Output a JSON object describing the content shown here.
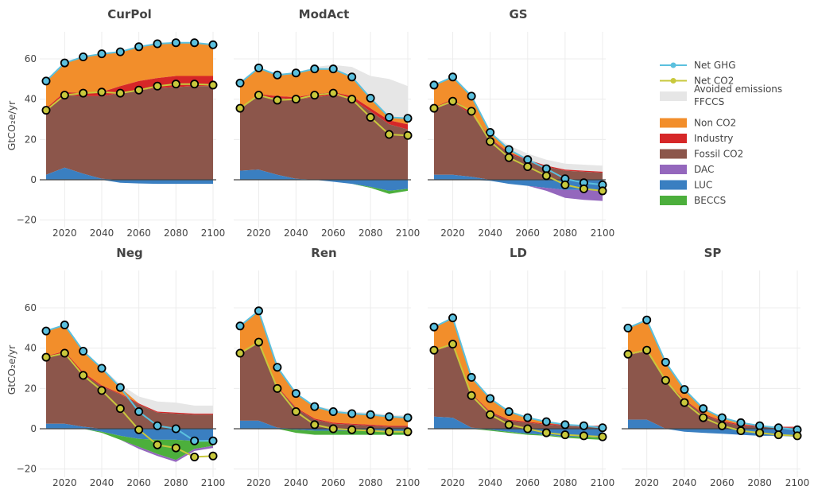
{
  "chart_data": {
    "type": "area",
    "ylabel": "GtCO₂e/yr",
    "x_ticks": [
      2020,
      2040,
      2060,
      2080,
      2100
    ],
    "y_ticks": [
      -20,
      0,
      20,
      40,
      60
    ],
    "ylim": [
      -20,
      75
    ],
    "x": [
      2010,
      2020,
      2030,
      2040,
      2050,
      2060,
      2070,
      2080,
      2090,
      2100
    ],
    "legend": {
      "placement": "right",
      "items": [
        {
          "key": "net_ghg",
          "label": "Net GHG",
          "kind": "line",
          "color": "#5bc0de"
        },
        {
          "key": "net_co2",
          "label": "Net CO2",
          "kind": "line",
          "color": "#c8c83c"
        },
        {
          "key": "avoided",
          "label": "Avoided emissions",
          "label2": "FFCCS",
          "kind": "area",
          "color": "#e6e6e6"
        },
        {
          "key": "nonco2",
          "label": "Non CO2",
          "kind": "area",
          "color": "#f28e2b"
        },
        {
          "key": "industry",
          "label": "Industry",
          "kind": "area",
          "color": "#d62728"
        },
        {
          "key": "fossil",
          "label": "Fossil CO2",
          "kind": "area",
          "color": "#8c564b"
        },
        {
          "key": "dac",
          "label": "DAC",
          "kind": "area",
          "color": "#9467bd"
        },
        {
          "key": "luc",
          "label": "LUC",
          "kind": "area",
          "color": "#3a7fc1"
        },
        {
          "key": "beccs",
          "label": "BECCS",
          "kind": "area",
          "color": "#4caf3c"
        }
      ]
    },
    "panels": [
      {
        "title": "CurPol",
        "net_ghg": [
          49,
          58,
          61,
          62.5,
          63.5,
          66,
          67.5,
          68,
          68,
          67
        ],
        "net_co2": [
          34.5,
          42,
          43,
          43.5,
          43,
          44.5,
          46.5,
          47.5,
          47.5,
          47
        ],
        "fossil": [
          32,
          36,
          38.5,
          41,
          43,
          44.5,
          45.5,
          46,
          46.5,
          46.5
        ],
        "industry": [
          1,
          1.5,
          1.5,
          2,
          3.5,
          4.5,
          5,
          5.5,
          5,
          5
        ],
        "luc": [
          2.5,
          6,
          3,
          0.5,
          -1.5,
          -1.8,
          -2,
          -2,
          -2,
          -2
        ],
        "beccs": [
          0,
          0,
          0,
          0,
          0,
          0,
          0,
          0,
          0,
          0
        ],
        "dac": [
          0,
          0,
          0,
          0,
          0,
          0,
          0,
          0,
          0,
          0
        ],
        "avoided": [
          0,
          0,
          0,
          0,
          0,
          0,
          0,
          0,
          0,
          0
        ]
      },
      {
        "title": "ModAct",
        "net_ghg": [
          48,
          55.5,
          52,
          53,
          55,
          55,
          51,
          40.5,
          31,
          30.5
        ],
        "net_co2": [
          35.5,
          42,
          39.5,
          40,
          42,
          43,
          40,
          31,
          22.5,
          22
        ],
        "fossil": [
          30.5,
          36.5,
          38,
          39.5,
          41,
          42,
          40,
          34,
          27.5,
          25
        ],
        "industry": [
          0.5,
          1,
          1,
          1,
          1.5,
          1.5,
          1.5,
          1.5,
          2,
          2.5
        ],
        "luc": [
          4.5,
          5,
          2.5,
          0.5,
          0,
          -1,
          -2,
          -3.5,
          -5.5,
          -4.5
        ],
        "beccs": [
          0,
          0,
          0,
          0,
          0,
          0,
          0,
          -0.5,
          -1.5,
          -1
        ],
        "dac": [
          0,
          0,
          0,
          0,
          0,
          0,
          0,
          0,
          0,
          0
        ],
        "avoided": [
          0,
          0,
          0,
          0,
          1,
          2,
          5,
          11,
          19,
          16
        ]
      },
      {
        "title": "GS",
        "net_ghg": [
          47,
          51,
          41.5,
          23.5,
          15,
          10,
          5.5,
          0.5,
          -1.5,
          -2.5
        ],
        "net_co2": [
          35.5,
          39,
          34,
          19,
          11,
          6.5,
          2,
          -2.5,
          -4.5,
          -5.5
        ],
        "fossil": [
          32.5,
          36,
          31,
          20,
          13,
          9.5,
          6.5,
          4.5,
          4,
          3.5
        ],
        "industry": [
          1,
          1.5,
          1.5,
          0.5,
          0.5,
          0.5,
          0.5,
          0.5,
          0.5,
          0.5
        ],
        "luc": [
          2.5,
          2.5,
          1.5,
          -0.5,
          -2,
          -3,
          -4,
          -5,
          -5,
          -5
        ],
        "beccs": [
          0,
          0,
          0,
          0,
          0,
          0,
          0,
          0,
          0,
          0
        ],
        "dac": [
          0,
          0,
          0,
          0,
          0,
          0,
          -1.5,
          -4,
          -5,
          -5.5
        ],
        "avoided": [
          0,
          0,
          0,
          0,
          2,
          3,
          3,
          3,
          3,
          3
        ]
      },
      {
        "title": "Neg",
        "net_ghg": [
          48.5,
          51.5,
          38.5,
          30,
          20.5,
          8.5,
          1.5,
          0,
          -6,
          -6
        ],
        "net_co2": [
          35.5,
          37.5,
          26.5,
          19,
          10,
          -0.5,
          -8,
          -9.5,
          -14,
          -13.5
        ],
        "fossil": [
          33,
          35,
          26,
          21,
          17,
          12,
          8,
          7.5,
          7,
          7
        ],
        "industry": [
          0.5,
          1,
          1,
          0.5,
          0.5,
          0.5,
          0.5,
          0.5,
          0.5,
          0.5
        ],
        "luc": [
          2.5,
          2.5,
          1,
          -1.5,
          -3.5,
          -5,
          -5.5,
          -5.5,
          -6,
          -5.5
        ],
        "beccs": [
          0,
          0,
          0,
          -0.5,
          -2,
          -4,
          -7,
          -10,
          -4,
          -3
        ],
        "dac": [
          0,
          0,
          0,
          0,
          0,
          -1,
          -1,
          -1,
          -1,
          -1
        ],
        "avoided": [
          0,
          0,
          0,
          0.5,
          1.5,
          3.5,
          5,
          5,
          4,
          4
        ]
      },
      {
        "title": "Ren",
        "net_ghg": [
          51,
          58.5,
          30.5,
          17.5,
          11,
          8.5,
          7.5,
          7,
          6,
          5.5
        ],
        "net_co2": [
          37.5,
          43,
          20,
          8.5,
          2,
          0,
          -0.5,
          -1,
          -1.5,
          -1.5
        ],
        "fossil": [
          33,
          38.5,
          20,
          10,
          4.5,
          2.5,
          2,
          1.5,
          1,
          1
        ],
        "industry": [
          0.5,
          0.5,
          0.5,
          0.5,
          0.5,
          0.5,
          0.5,
          0.5,
          0.5,
          0.5
        ],
        "luc": [
          4,
          4,
          0.5,
          -0.5,
          -1,
          -1,
          -1,
          -1,
          -1,
          -1
        ],
        "beccs": [
          0,
          0,
          0,
          -1.5,
          -2,
          -2,
          -2,
          -2,
          -2,
          -2
        ],
        "dac": [
          0,
          0,
          0,
          0,
          0,
          0,
          0,
          0,
          0,
          0
        ],
        "avoided": [
          0,
          0,
          0,
          0,
          0.5,
          1,
          1,
          1,
          1,
          1
        ]
      },
      {
        "title": "LD",
        "net_ghg": [
          50.5,
          55,
          25.5,
          15,
          8.5,
          5.5,
          3.5,
          2,
          1.5,
          0.5
        ],
        "net_co2": [
          39,
          42,
          16.5,
          7,
          2,
          0,
          -2,
          -3,
          -3.5,
          -4
        ],
        "fossil": [
          32.5,
          36,
          16.5,
          8,
          4,
          3,
          2,
          1.5,
          1,
          1
        ],
        "industry": [
          0.5,
          0.5,
          0.5,
          0.5,
          0.5,
          0.5,
          0.5,
          0.5,
          0.5,
          0.5
        ],
        "luc": [
          6,
          5.5,
          0.5,
          -0.5,
          -1.5,
          -2.5,
          -3,
          -4,
          -4,
          -4.5
        ],
        "beccs": [
          0,
          0,
          0,
          -0.5,
          -0.5,
          -0.5,
          -0.5,
          -0.5,
          -1,
          -1
        ],
        "dac": [
          0,
          0,
          0,
          0,
          0,
          0,
          0,
          0,
          0,
          0
        ],
        "avoided": [
          0,
          0,
          0,
          0,
          0,
          0,
          0,
          0,
          0,
          0
        ]
      },
      {
        "title": "SP",
        "net_ghg": [
          50,
          54,
          33,
          19.5,
          10,
          5.5,
          3,
          1.5,
          0.5,
          -0.5
        ],
        "net_co2": [
          37,
          39,
          24,
          13,
          5.5,
          1.5,
          -1,
          -2,
          -3,
          -3.5
        ],
        "fossil": [
          32,
          34,
          23.5,
          14,
          7,
          3.5,
          1.5,
          1,
          0.5,
          0.5
        ],
        "industry": [
          0.5,
          0.5,
          0.5,
          0.5,
          0.5,
          0.5,
          0.5,
          0.5,
          0.5,
          0.5
        ],
        "luc": [
          4.5,
          4.5,
          0,
          -1.5,
          -2,
          -2.5,
          -3,
          -3.5,
          -3.5,
          -4
        ],
        "beccs": [
          0,
          0,
          0,
          0,
          0,
          0,
          0,
          0,
          0,
          0
        ],
        "dac": [
          0,
          0,
          0,
          0,
          0,
          0,
          0,
          0,
          0,
          0
        ],
        "avoided": [
          0,
          0,
          0,
          0,
          0,
          0,
          0,
          0,
          0,
          0
        ]
      }
    ]
  }
}
